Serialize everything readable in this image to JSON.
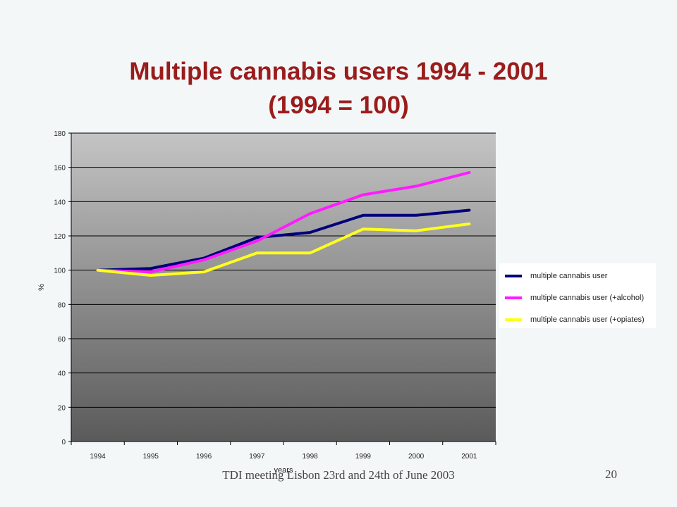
{
  "slide": {
    "title_line1": "Multiple cannabis users 1994 - 2001",
    "title_line2": "(1994 = 100)",
    "footer": "TDI meeting Lisbon 23rd and 24th of June 2003",
    "page_number": "20"
  },
  "colors": {
    "title": "#9b1c1c",
    "plot_gradient_top": "#c4c4c4",
    "plot_gradient_bottom": "#5a5a5a",
    "background": "#f3f7f7"
  },
  "chart_data": {
    "type": "line",
    "title": "Multiple cannabis users 1994 - 2001 (1994 = 100)",
    "xlabel": "years",
    "ylabel": "%",
    "categories": [
      "1994",
      "1995",
      "1996",
      "1997",
      "1998",
      "1999",
      "2000",
      "2001"
    ],
    "ylim": [
      0,
      180
    ],
    "yticks": [
      0,
      20,
      40,
      60,
      80,
      100,
      120,
      140,
      160,
      180
    ],
    "grid": true,
    "legend_position": "right",
    "series": [
      {
        "name": "multiple cannabis user",
        "color": "#00007a",
        "values": [
          100,
          101,
          107,
          119,
          122,
          132,
          132,
          135
        ]
      },
      {
        "name": "multiple cannabis user (+alcohol)",
        "color": "#ff1cff",
        "values": [
          100,
          99,
          106,
          117,
          133,
          144,
          149,
          157
        ]
      },
      {
        "name": "multiple cannabis user (+opiates)",
        "color": "#ffff1e",
        "values": [
          100,
          97,
          99,
          110,
          110,
          124,
          123,
          127
        ]
      }
    ]
  }
}
